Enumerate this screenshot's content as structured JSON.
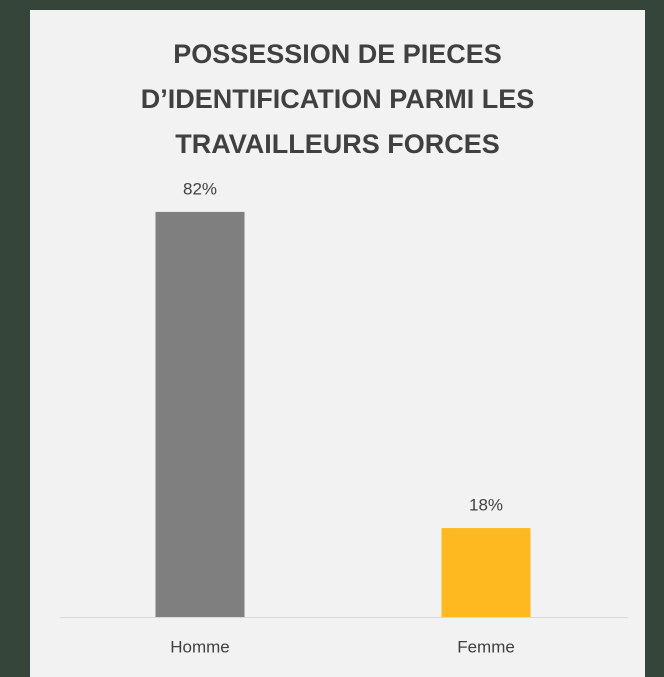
{
  "chart_data": {
    "type": "bar",
    "title": "POSSESSION DE PIECES D’IDENTIFICATION PARMI LES TRAVAILLEURS FORCES",
    "categories": [
      "Homme",
      "Femme"
    ],
    "values": [
      82,
      18
    ],
    "value_labels": [
      "82%",
      "18%"
    ],
    "colors": [
      "#7f7f7f",
      "#fdb91f"
    ]
  }
}
